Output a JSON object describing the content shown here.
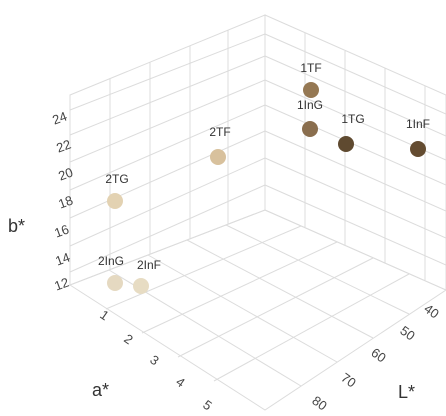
{
  "chart_data": {
    "type": "scatter",
    "projection": "3d",
    "grid": true,
    "legend": "none",
    "axes": {
      "b": {
        "label": "b*",
        "ticks": [
          12,
          14,
          16,
          18,
          20,
          22,
          24
        ]
      },
      "a": {
        "label": "a*",
        "ticks": [
          1,
          2,
          3,
          4,
          5
        ]
      },
      "L": {
        "label": "L*",
        "ticks": [
          40,
          50,
          60,
          70,
          80
        ]
      }
    },
    "points": [
      {
        "label": "1TF",
        "color": "#957853"
      },
      {
        "label": "1InG",
        "color": "#8a6e4e"
      },
      {
        "label": "1TG",
        "color": "#5f4a30"
      },
      {
        "label": "1InF",
        "color": "#644c31"
      },
      {
        "label": "2TF",
        "color": "#d8c19d"
      },
      {
        "label": "2TG",
        "color": "#e3d2b2"
      },
      {
        "label": "2InG",
        "color": "#e5d9c1"
      },
      {
        "label": "2InF",
        "color": "#e7dcc3"
      }
    ]
  }
}
